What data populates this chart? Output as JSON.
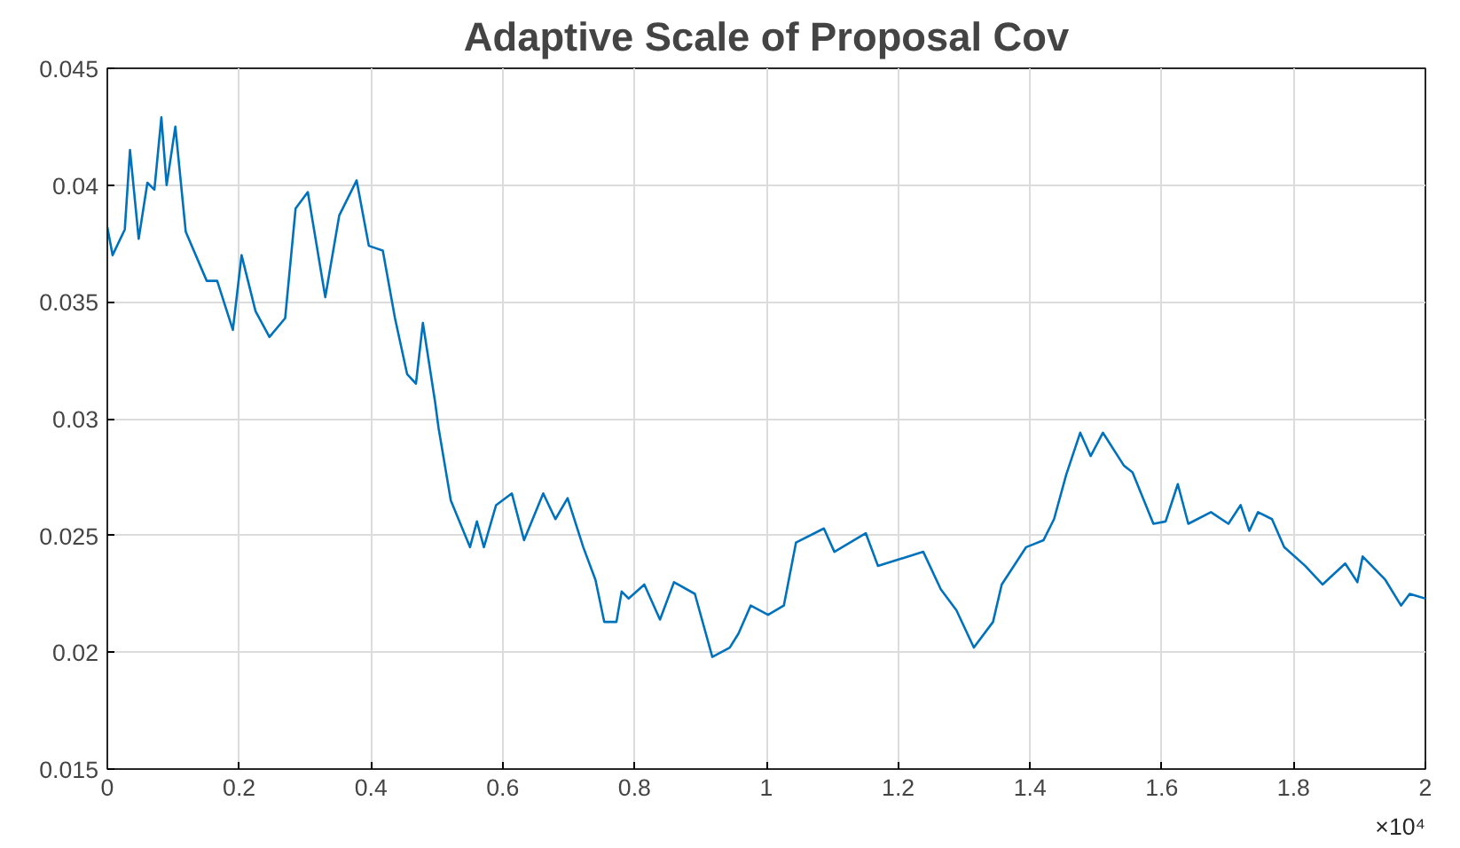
{
  "chart_data": {
    "type": "line",
    "title": "Adaptive Scale of Proposal Cov",
    "x": [
      0,
      0.008,
      0.0265,
      0.0344,
      0.0476,
      0.0608,
      0.0714,
      0.082,
      0.09,
      0.1032,
      0.119,
      0.1508,
      0.1667,
      0.1905,
      0.2037,
      0.2249,
      0.246,
      0.2698,
      0.2857,
      0.3042,
      0.3307,
      0.3519,
      0.3783,
      0.3968,
      0.418,
      0.4365,
      0.455,
      0.4683,
      0.4788,
      0.4974,
      0.5026,
      0.5212,
      0.5503,
      0.5608,
      0.5714,
      0.5899,
      0.6138,
      0.6323,
      0.6614,
      0.6799,
      0.6984,
      0.7222,
      0.7407,
      0.754,
      0.7725,
      0.7804,
      0.791,
      0.8148,
      0.8386,
      0.8598,
      0.8915,
      0.918,
      0.9444,
      0.9577,
      0.9762,
      1.0026,
      1.0265,
      1.045,
      1.0873,
      1.1032,
      1.1508,
      1.1693,
      1.2381,
      1.2646,
      1.2884,
      1.3148,
      1.3439,
      1.3571,
      1.3942,
      1.4206,
      1.4365,
      1.455,
      1.4762,
      1.4921,
      1.5106,
      1.5423,
      1.5556,
      1.5873,
      1.6058,
      1.6243,
      1.6402,
      1.6746,
      1.7011,
      1.7196,
      1.7328,
      1.746,
      1.7672,
      1.7857,
      1.8175,
      1.8439,
      1.8783,
      1.8968,
      1.9048,
      1.9392,
      1.963,
      1.9762,
      2
    ],
    "series": [
      {
        "color": "#0072bd",
        "values": [
          0.0382,
          0.037,
          0.0381,
          0.0415,
          0.0377,
          0.0401,
          0.0398,
          0.0429,
          0.04,
          0.0425,
          0.038,
          0.0359,
          0.0359,
          0.0338,
          0.037,
          0.0346,
          0.0335,
          0.0343,
          0.039,
          0.0397,
          0.0352,
          0.0387,
          0.0402,
          0.0374,
          0.0372,
          0.0343,
          0.0319,
          0.0315,
          0.0341,
          0.0307,
          0.0296,
          0.0265,
          0.0245,
          0.0256,
          0.0245,
          0.0263,
          0.0268,
          0.0248,
          0.0268,
          0.0257,
          0.0266,
          0.0245,
          0.0231,
          0.0213,
          0.0213,
          0.0226,
          0.0223,
          0.0229,
          0.0214,
          0.023,
          0.0225,
          0.0198,
          0.0202,
          0.0208,
          0.022,
          0.0216,
          0.022,
          0.0247,
          0.0253,
          0.0243,
          0.0251,
          0.0237,
          0.0243,
          0.0227,
          0.0218,
          0.0202,
          0.0213,
          0.0229,
          0.0245,
          0.0248,
          0.0257,
          0.0276,
          0.0294,
          0.0284,
          0.0294,
          0.028,
          0.0277,
          0.0255,
          0.0256,
          0.0272,
          0.0255,
          0.026,
          0.0255,
          0.0263,
          0.0252,
          0.026,
          0.0257,
          0.0245,
          0.0237,
          0.0229,
          0.0238,
          0.023,
          0.0241,
          0.0231,
          0.022,
          0.0225,
          0.0223
        ]
      }
    ],
    "xlim": [
      0,
      2
    ],
    "xticks": [
      0,
      0.2,
      0.4,
      0.6,
      0.8,
      1,
      1.2,
      1.4,
      1.6,
      1.8,
      2
    ],
    "ylim": [
      0.015,
      0.045
    ],
    "yticks": [
      0.015,
      0.02,
      0.025,
      0.03,
      0.035,
      0.04,
      0.045
    ],
    "annotations": [
      "×10⁴"
    ],
    "grid": true,
    "marker": "none",
    "line_style": "solid"
  }
}
